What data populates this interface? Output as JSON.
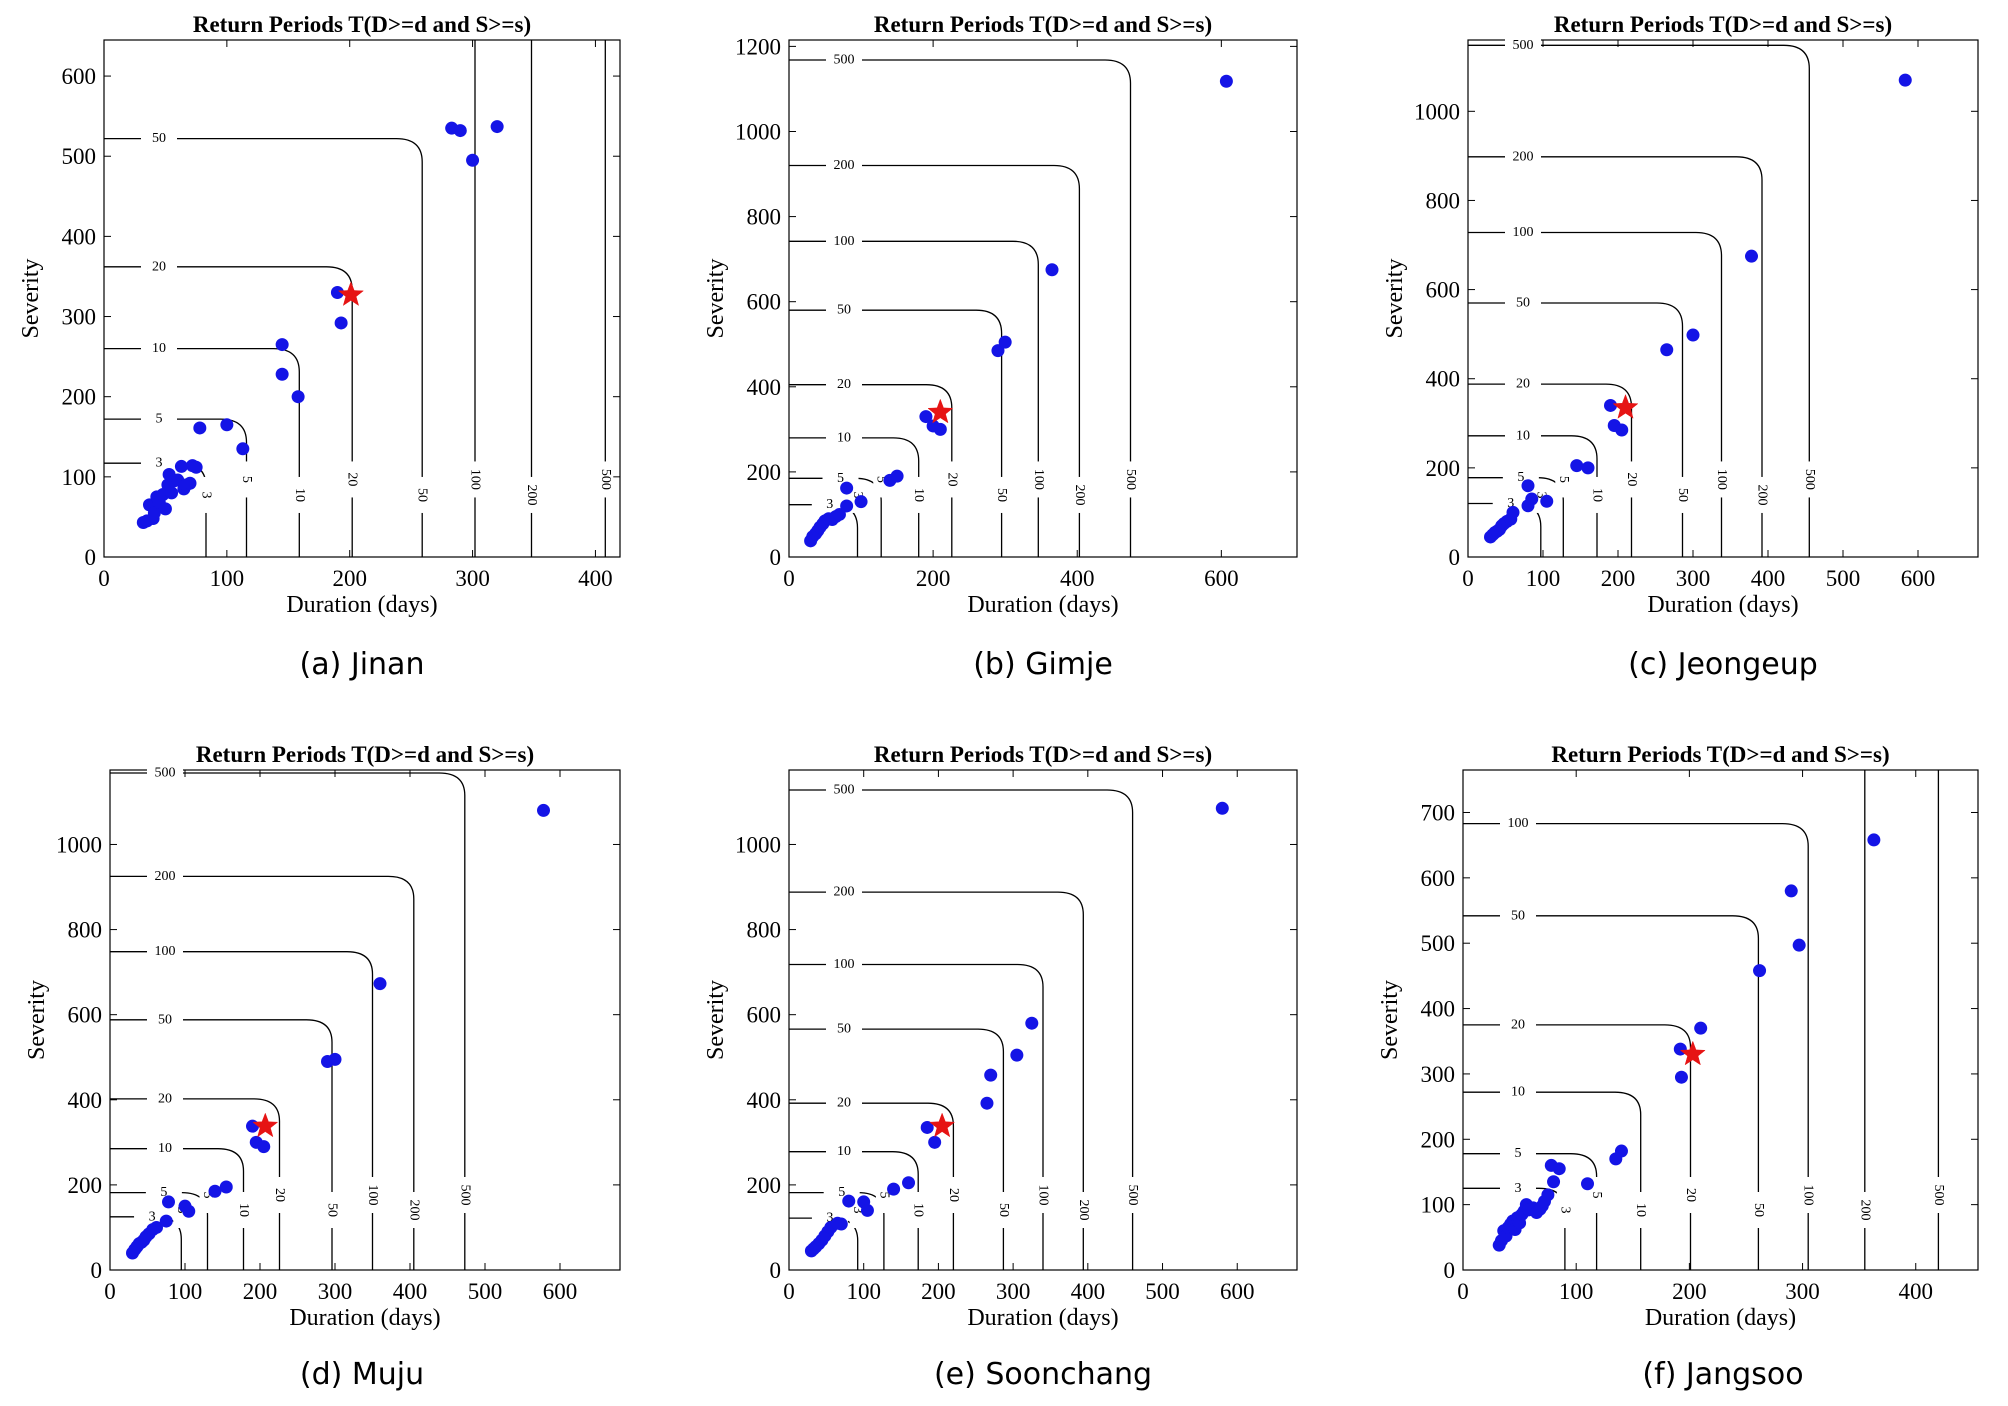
{
  "figure": {
    "panels": [
      {
        "caption": "(a) Jinan"
      },
      {
        "caption": "(b) Gimje"
      },
      {
        "caption": "(c) Jeongeup"
      },
      {
        "caption": "(d) Muju"
      },
      {
        "caption": "(e) Soonchang"
      },
      {
        "caption": "(f) Jangsoo"
      }
    ]
  },
  "colors": {
    "observed": "#1414e6",
    "star": "#e61414",
    "contour": "#000000",
    "axes": "#000000"
  },
  "chart_data": [
    {
      "type": "scatter",
      "title": "Return Periods T(D>=d and S>=s)",
      "xlabel": "Duration (days)",
      "ylabel": "Severity",
      "xlim": [
        0,
        420
      ],
      "ylim": [
        0,
        645
      ],
      "xticks": [
        0,
        100,
        200,
        300,
        400
      ],
      "yticks": [
        0,
        100,
        200,
        300,
        400,
        500,
        600
      ],
      "grid": false,
      "contours": [
        {
          "label": "3",
          "d": 83,
          "s": 117
        },
        {
          "label": "5",
          "d": 116,
          "s": 172
        },
        {
          "label": "10",
          "d": 159,
          "s": 260
        },
        {
          "label": "20",
          "d": 202,
          "s": 362
        },
        {
          "label": "50",
          "d": 259,
          "s": 522
        },
        {
          "label": "100",
          "d": 302,
          "s": null
        },
        {
          "label": "200",
          "d": 348,
          "s": null
        },
        {
          "label": "500",
          "d": 408,
          "s": null
        }
      ],
      "series": [
        {
          "marker": "dot",
          "points": [
            [
              32,
              43
            ],
            [
              35,
              45
            ],
            [
              37,
              65
            ],
            [
              40,
              48
            ],
            [
              41,
              55
            ],
            [
              43,
              75
            ],
            [
              45,
              68
            ],
            [
              48,
              78
            ],
            [
              50,
              60
            ],
            [
              52,
              90
            ],
            [
              53,
              103
            ],
            [
              55,
              80
            ],
            [
              57,
              95
            ],
            [
              60,
              96
            ],
            [
              63,
              113
            ],
            [
              65,
              85
            ],
            [
              67,
              90
            ],
            [
              70,
              92
            ],
            [
              72,
              114
            ],
            [
              75,
              112
            ],
            [
              78,
              161
            ],
            [
              100,
              165
            ],
            [
              113,
              135
            ],
            [
              145,
              265
            ],
            [
              145,
              228
            ],
            [
              158,
              200
            ],
            [
              190,
              330
            ],
            [
              193,
              292
            ],
            [
              283,
              535
            ],
            [
              290,
              532
            ],
            [
              300,
              495
            ],
            [
              320,
              537
            ]
          ]
        },
        {
          "marker": "star",
          "points": [
            [
              201,
              327
            ]
          ]
        }
      ]
    },
    {
      "type": "scatter",
      "title": "Return Periods T(D>=d and S>=s)",
      "xlabel": "Duration (days)",
      "ylabel": "Severity",
      "xlim": [
        0,
        705
      ],
      "ylim": [
        0,
        1215
      ],
      "xticks": [
        0,
        200,
        400,
        600
      ],
      "yticks": [
        0,
        200,
        400,
        600,
        800,
        1000,
        1200
      ],
      "grid": false,
      "contours": [
        {
          "label": "3",
          "d": 95,
          "s": 123
        },
        {
          "label": "5",
          "d": 128,
          "s": 185
        },
        {
          "label": "10",
          "d": 180,
          "s": 280
        },
        {
          "label": "20",
          "d": 226,
          "s": 405
        },
        {
          "label": "50",
          "d": 295,
          "s": 580
        },
        {
          "label": "100",
          "d": 346,
          "s": 742
        },
        {
          "label": "200",
          "d": 403,
          "s": 920
        },
        {
          "label": "500",
          "d": 474,
          "s": 1168
        }
      ],
      "series": [
        {
          "marker": "dot",
          "points": [
            [
              30,
              38
            ],
            [
              33,
              48
            ],
            [
              37,
              55
            ],
            [
              40,
              62
            ],
            [
              43,
              70
            ],
            [
              47,
              78
            ],
            [
              50,
              85
            ],
            [
              55,
              90
            ],
            [
              60,
              88
            ],
            [
              65,
              95
            ],
            [
              70,
              100
            ],
            [
              80,
              162
            ],
            [
              80,
              120
            ],
            [
              100,
              130
            ],
            [
              140,
              180
            ],
            [
              150,
              190
            ],
            [
              190,
              330
            ],
            [
              200,
              308
            ],
            [
              210,
              300
            ],
            [
              290,
              485
            ],
            [
              300,
              505
            ],
            [
              365,
              675
            ],
            [
              607,
              1118
            ]
          ]
        },
        {
          "marker": "star",
          "points": [
            [
              210,
              340
            ]
          ]
        }
      ]
    },
    {
      "type": "scatter",
      "title": "Return Periods T(D>=d and S>=s)",
      "xlabel": "Duration (days)",
      "ylabel": "Severity",
      "xlim": [
        0,
        680
      ],
      "ylim": [
        0,
        1160
      ],
      "xticks": [
        0,
        100,
        200,
        300,
        400,
        500,
        600
      ],
      "yticks": [
        0,
        200,
        400,
        600,
        800,
        1000
      ],
      "grid": false,
      "contours": [
        {
          "label": "3",
          "d": 97,
          "s": 120
        },
        {
          "label": "5",
          "d": 127,
          "s": 178
        },
        {
          "label": "10",
          "d": 172,
          "s": 272
        },
        {
          "label": "20",
          "d": 218,
          "s": 388
        },
        {
          "label": "50",
          "d": 286,
          "s": 570
        },
        {
          "label": "100",
          "d": 338,
          "s": 728
        },
        {
          "label": "200",
          "d": 392,
          "s": 898
        },
        {
          "label": "500",
          "d": 455,
          "s": 1148
        }
      ],
      "series": [
        {
          "marker": "dot",
          "points": [
            [
              30,
              45
            ],
            [
              33,
              50
            ],
            [
              36,
              55
            ],
            [
              39,
              58
            ],
            [
              42,
              62
            ],
            [
              45,
              70
            ],
            [
              48,
              75
            ],
            [
              52,
              80
            ],
            [
              57,
              85
            ],
            [
              60,
              100
            ],
            [
              80,
              160
            ],
            [
              80,
              115
            ],
            [
              85,
              130
            ],
            [
              105,
              125
            ],
            [
              145,
              205
            ],
            [
              160,
              200
            ],
            [
              190,
              340
            ],
            [
              195,
              295
            ],
            [
              205,
              285
            ],
            [
              265,
              465
            ],
            [
              300,
              498
            ],
            [
              378,
              675
            ],
            [
              583,
              1070
            ]
          ]
        },
        {
          "marker": "star",
          "points": [
            [
              210,
              335
            ]
          ]
        }
      ]
    },
    {
      "type": "scatter",
      "title": "Return Periods T(D>=d and S>=s)",
      "xlabel": "Duration (days)",
      "ylabel": "Severity",
      "xlim": [
        0,
        680
      ],
      "ylim": [
        0,
        1175
      ],
      "xticks": [
        0,
        100,
        200,
        300,
        400,
        500,
        600
      ],
      "yticks": [
        0,
        200,
        400,
        600,
        800,
        1000
      ],
      "grid": false,
      "contours": [
        {
          "label": "3",
          "d": 95,
          "s": 125
        },
        {
          "label": "5",
          "d": 130,
          "s": 182
        },
        {
          "label": "10",
          "d": 178,
          "s": 285
        },
        {
          "label": "20",
          "d": 226,
          "s": 402
        },
        {
          "label": "50",
          "d": 296,
          "s": 588
        },
        {
          "label": "100",
          "d": 350,
          "s": 748
        },
        {
          "label": "200",
          "d": 405,
          "s": 925
        },
        {
          "label": "500",
          "d": 473,
          "s": 1168
        }
      ],
      "series": [
        {
          "marker": "dot",
          "points": [
            [
              30,
              40
            ],
            [
              33,
              48
            ],
            [
              36,
              55
            ],
            [
              39,
              62
            ],
            [
              42,
              65
            ],
            [
              45,
              70
            ],
            [
              48,
              78
            ],
            [
              52,
              85
            ],
            [
              57,
              95
            ],
            [
              62,
              100
            ],
            [
              75,
              115
            ],
            [
              78,
              160
            ],
            [
              100,
              150
            ],
            [
              105,
              138
            ],
            [
              140,
              185
            ],
            [
              155,
              195
            ],
            [
              190,
              338
            ],
            [
              195,
              300
            ],
            [
              205,
              290
            ],
            [
              290,
              490
            ],
            [
              300,
              495
            ],
            [
              360,
              673
            ],
            [
              578,
              1080
            ]
          ]
        },
        {
          "marker": "star",
          "points": [
            [
              207,
              338
            ]
          ]
        }
      ]
    },
    {
      "type": "scatter",
      "title": "Return Periods T(D>=d and S>=s)",
      "xlabel": "Duration (days)",
      "ylabel": "Severity",
      "xlim": [
        0,
        680
      ],
      "ylim": [
        0,
        1175
      ],
      "xticks": [
        0,
        100,
        200,
        300,
        400,
        500,
        600
      ],
      "yticks": [
        0,
        200,
        400,
        600,
        800,
        1000
      ],
      "grid": false,
      "contours": [
        {
          "label": "3",
          "d": 92,
          "s": 122
        },
        {
          "label": "5",
          "d": 127,
          "s": 182
        },
        {
          "label": "10",
          "d": 173,
          "s": 278
        },
        {
          "label": "20",
          "d": 220,
          "s": 392
        },
        {
          "label": "50",
          "d": 287,
          "s": 566
        },
        {
          "label": "100",
          "d": 340,
          "s": 718
        },
        {
          "label": "200",
          "d": 394,
          "s": 888
        },
        {
          "label": "500",
          "d": 460,
          "s": 1128
        }
      ],
      "series": [
        {
          "marker": "dot",
          "points": [
            [
              30,
              45
            ],
            [
              33,
              50
            ],
            [
              36,
              55
            ],
            [
              40,
              62
            ],
            [
              44,
              70
            ],
            [
              48,
              80
            ],
            [
              52,
              90
            ],
            [
              56,
              100
            ],
            [
              65,
              110
            ],
            [
              70,
              108
            ],
            [
              80,
              162
            ],
            [
              100,
              160
            ],
            [
              105,
              140
            ],
            [
              140,
              190
            ],
            [
              160,
              205
            ],
            [
              185,
              335
            ],
            [
              195,
              300
            ],
            [
              265,
              392
            ],
            [
              270,
              458
            ],
            [
              305,
              505
            ],
            [
              325,
              580
            ],
            [
              580,
              1085
            ]
          ]
        },
        {
          "marker": "star",
          "points": [
            [
              205,
              338
            ]
          ]
        }
      ]
    },
    {
      "type": "scatter",
      "title": "Return Periods T(D>=d and S>=s)",
      "xlabel": "Duration (days)",
      "ylabel": "Severity",
      "xlim": [
        0,
        455
      ],
      "ylim": [
        0,
        765
      ],
      "xticks": [
        0,
        100,
        200,
        300,
        400
      ],
      "yticks": [
        0,
        100,
        200,
        300,
        400,
        500,
        600,
        700
      ],
      "grid": false,
      "contours": [
        {
          "label": "3",
          "d": 90,
          "s": 125
        },
        {
          "label": "5",
          "d": 118,
          "s": 178
        },
        {
          "label": "10",
          "d": 157,
          "s": 272
        },
        {
          "label": "20",
          "d": 201,
          "s": 375
        },
        {
          "label": "50",
          "d": 261,
          "s": 542
        },
        {
          "label": "100",
          "d": 305,
          "s": 683
        },
        {
          "label": "200",
          "d": 355,
          "s": null
        },
        {
          "label": "500",
          "d": 420,
          "s": null
        }
      ],
      "series": [
        {
          "marker": "dot",
          "points": [
            [
              32,
              38
            ],
            [
              34,
              45
            ],
            [
              36,
              60
            ],
            [
              38,
              52
            ],
            [
              40,
              65
            ],
            [
              42,
              70
            ],
            [
              44,
              75
            ],
            [
              46,
              62
            ],
            [
              48,
              80
            ],
            [
              50,
              72
            ],
            [
              52,
              85
            ],
            [
              54,
              90
            ],
            [
              56,
              100
            ],
            [
              58,
              92
            ],
            [
              62,
              95
            ],
            [
              65,
              88
            ],
            [
              68,
              93
            ],
            [
              70,
              98
            ],
            [
              72,
              105
            ],
            [
              75,
              115
            ],
            [
              78,
              160
            ],
            [
              80,
              135
            ],
            [
              85,
              155
            ],
            [
              110,
              132
            ],
            [
              135,
              170
            ],
            [
              140,
              182
            ],
            [
              192,
              338
            ],
            [
              193,
              295
            ],
            [
              210,
              370
            ],
            [
              262,
              458
            ],
            [
              290,
              580
            ],
            [
              297,
              497
            ],
            [
              363,
              658
            ]
          ]
        },
        {
          "marker": "star",
          "points": [
            [
              203,
              330
            ]
          ]
        }
      ]
    }
  ]
}
